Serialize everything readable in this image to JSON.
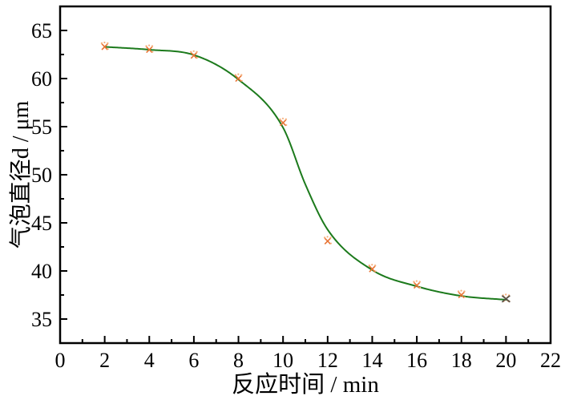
{
  "chart_data": {
    "type": "line",
    "title": "",
    "xlabel": "反应时间 / min",
    "ylabel": "气泡直径d / μm",
    "xlim": [
      0,
      22
    ],
    "ylim": [
      32.5,
      67.5
    ],
    "x_major_ticks": [
      0,
      2,
      4,
      6,
      8,
      10,
      12,
      14,
      16,
      18,
      20,
      22
    ],
    "x_minor_step": 1,
    "y_major_ticks": [
      35,
      40,
      45,
      50,
      55,
      60,
      65
    ],
    "y_minor_step": 2.5,
    "grid": false,
    "legend": null,
    "series": [
      {
        "name": "fitted-curve",
        "type": "line",
        "color": "#1c7a1c",
        "x": [
          2,
          4,
          6,
          8,
          10,
          11,
          12,
          14,
          16,
          18,
          20
        ],
        "y": [
          63.3,
          63.0,
          62.45,
          59.9,
          54.9,
          49.0,
          44.3,
          40.1,
          38.4,
          37.4,
          37.0
        ]
      },
      {
        "name": "measured-points",
        "type": "scatter",
        "marker": "orange-x-with-dots",
        "color": "#e87434",
        "color_light": "#f6b07e",
        "x": [
          2,
          4,
          6,
          8,
          10,
          12,
          14,
          16,
          18,
          20
        ],
        "y": [
          63.3,
          63.0,
          62.4,
          60.0,
          55.4,
          43.1,
          40.2,
          38.5,
          37.5,
          37.1
        ]
      }
    ],
    "end_marker": {
      "x": 20,
      "y": 37.1,
      "color": "#56544a"
    }
  },
  "colors": {
    "background": "#ffffff",
    "frame": "#000000",
    "tick_labels": "#000000"
  }
}
